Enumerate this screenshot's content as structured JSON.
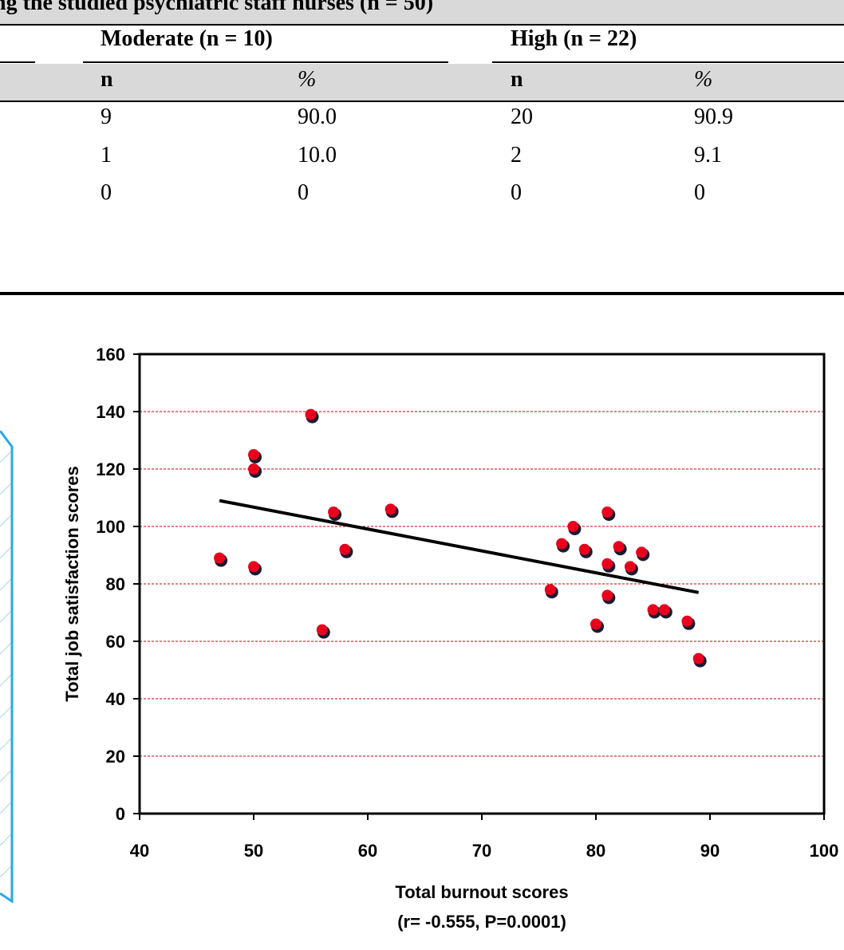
{
  "table": {
    "title": "ng the studied psychiatric staff nurses (n = 50)",
    "groups": [
      {
        "label": "Moderate (n = 10)"
      },
      {
        "label": "High (n = 22)"
      }
    ],
    "subheaders": [
      "n",
      "%",
      "n",
      "%"
    ],
    "rows": [
      [
        "9",
        "90.0",
        "20",
        "90.9"
      ],
      [
        "1",
        "10.0",
        "2",
        "9.1"
      ],
      [
        "0",
        "0",
        "0",
        "0"
      ]
    ]
  },
  "chart_data": {
    "type": "scatter",
    "title": "",
    "xlabel": "Total burnout scores",
    "xlabel_note": "(r= -0.555, P=0.0001)",
    "ylabel": "Total job satisfaction scores",
    "xlim": [
      40,
      100
    ],
    "ylim": [
      0,
      160
    ],
    "x_ticks": [
      40,
      50,
      60,
      70,
      80,
      90,
      100
    ],
    "y_ticks": [
      0,
      20,
      40,
      60,
      80,
      100,
      120,
      140,
      160
    ],
    "grid": "horizontal dashed",
    "marker_color": "#e8001c",
    "gridline_color": "#cc0000",
    "points": [
      {
        "x": 47,
        "y": 89
      },
      {
        "x": 50,
        "y": 125
      },
      {
        "x": 50,
        "y": 120
      },
      {
        "x": 50,
        "y": 86
      },
      {
        "x": 55,
        "y": 139
      },
      {
        "x": 56,
        "y": 64
      },
      {
        "x": 57,
        "y": 105
      },
      {
        "x": 58,
        "y": 92
      },
      {
        "x": 62,
        "y": 106
      },
      {
        "x": 76,
        "y": 78
      },
      {
        "x": 77,
        "y": 94
      },
      {
        "x": 78,
        "y": 100
      },
      {
        "x": 79,
        "y": 92
      },
      {
        "x": 80,
        "y": 66
      },
      {
        "x": 81,
        "y": 105
      },
      {
        "x": 81,
        "y": 87
      },
      {
        "x": 81,
        "y": 76
      },
      {
        "x": 82,
        "y": 93
      },
      {
        "x": 83,
        "y": 86
      },
      {
        "x": 84,
        "y": 91
      },
      {
        "x": 85,
        "y": 71
      },
      {
        "x": 86,
        "y": 71
      },
      {
        "x": 88,
        "y": 67
      },
      {
        "x": 89,
        "y": 54
      }
    ],
    "trendline": {
      "x": [
        47,
        89
      ],
      "y": [
        109,
        77
      ]
    }
  }
}
